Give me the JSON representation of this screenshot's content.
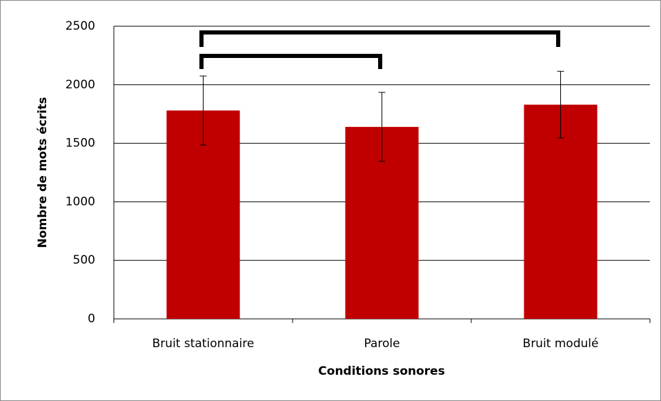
{
  "chart_data": {
    "type": "bar",
    "x_label": "Conditions sonores",
    "y_label": "Nombre de mots écrits",
    "categories": [
      "Bruit stationnaire",
      "Parole",
      "Bruit modulé"
    ],
    "values": [
      1780,
      1640,
      1830
    ],
    "errors": [
      295,
      295,
      285
    ],
    "color": "#c00000",
    "ylim": [
      0,
      2500
    ],
    "yticks": [
      0,
      500,
      1000,
      1500,
      2000,
      2500
    ],
    "grid": true
  }
}
